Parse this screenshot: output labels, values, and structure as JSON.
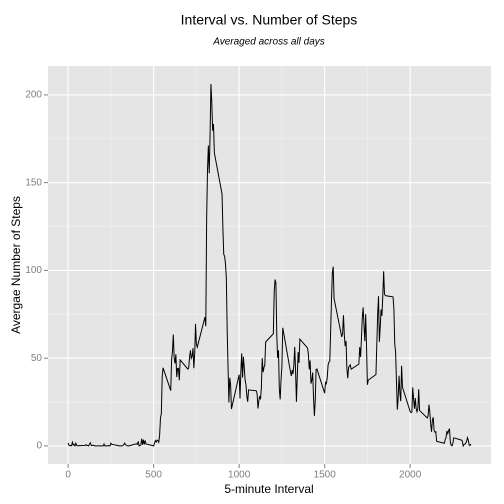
{
  "chart_data": {
    "type": "line",
    "title": "Interval vs. Number of Steps",
    "subtitle": "Averaged across all days",
    "xlabel": "5-minute Interval",
    "ylabel": "Avergae Number of Steps",
    "xlim": [
      -117.75,
      2472.75
    ],
    "ylim": [
      -10.31,
      216.48
    ],
    "xticks": [
      0,
      500,
      1000,
      1500,
      2000
    ],
    "yticks": [
      0,
      50,
      100,
      150,
      200
    ],
    "grid": true,
    "x": [
      0,
      5,
      10,
      15,
      20,
      25,
      30,
      35,
      40,
      45,
      50,
      55,
      100,
      105,
      110,
      115,
      120,
      125,
      130,
      135,
      140,
      145,
      150,
      155,
      200,
      205,
      210,
      215,
      220,
      225,
      230,
      235,
      240,
      245,
      250,
      255,
      300,
      305,
      310,
      315,
      320,
      325,
      330,
      335,
      340,
      345,
      350,
      355,
      400,
      405,
      410,
      415,
      420,
      425,
      430,
      435,
      440,
      445,
      450,
      455,
      500,
      505,
      510,
      515,
      520,
      525,
      530,
      535,
      540,
      545,
      550,
      555,
      600,
      605,
      610,
      615,
      620,
      625,
      630,
      635,
      640,
      645,
      650,
      655,
      700,
      705,
      710,
      715,
      720,
      725,
      730,
      735,
      740,
      745,
      750,
      755,
      800,
      805,
      810,
      815,
      820,
      825,
      830,
      835,
      840,
      845,
      850,
      855,
      900,
      905,
      910,
      915,
      920,
      925,
      930,
      935,
      940,
      945,
      950,
      955,
      1000,
      1005,
      1010,
      1015,
      1020,
      1025,
      1030,
      1035,
      1040,
      1045,
      1050,
      1055,
      1100,
      1105,
      1110,
      1115,
      1120,
      1125,
      1130,
      1135,
      1140,
      1145,
      1150,
      1155,
      1200,
      1205,
      1210,
      1215,
      1220,
      1225,
      1230,
      1235,
      1240,
      1245,
      1250,
      1255,
      1300,
      1305,
      1310,
      1315,
      1320,
      1325,
      1330,
      1335,
      1340,
      1345,
      1350,
      1355,
      1400,
      1405,
      1410,
      1415,
      1420,
      1425,
      1430,
      1435,
      1440,
      1445,
      1450,
      1455,
      1500,
      1505,
      1510,
      1515,
      1520,
      1525,
      1530,
      1535,
      1540,
      1545,
      1550,
      1555,
      1600,
      1605,
      1610,
      1615,
      1620,
      1625,
      1630,
      1635,
      1640,
      1645,
      1650,
      1655,
      1700,
      1705,
      1710,
      1715,
      1720,
      1725,
      1730,
      1735,
      1740,
      1745,
      1750,
      1755,
      1800,
      1805,
      1810,
      1815,
      1820,
      1825,
      1830,
      1835,
      1840,
      1845,
      1850,
      1855,
      1900,
      1905,
      1910,
      1915,
      1920,
      1925,
      1930,
      1935,
      1940,
      1945,
      1950,
      1955,
      2000,
      2005,
      2010,
      2015,
      2020,
      2025,
      2030,
      2035,
      2040,
      2045,
      2050,
      2055,
      2100,
      2105,
      2110,
      2115,
      2120,
      2125,
      2130,
      2135,
      2140,
      2145,
      2150,
      2155,
      2200,
      2205,
      2210,
      2215,
      2220,
      2225,
      2230,
      2235,
      2240,
      2245,
      2250,
      2255,
      2300,
      2305,
      2310,
      2315,
      2320,
      2325,
      2330,
      2335,
      2340,
      2345,
      2350,
      2355
    ],
    "series": [
      {
        "name": "steps",
        "color": "#000000",
        "values": [
          1.7,
          0.3,
          0.1,
          0.2,
          0.1,
          2.1,
          0.5,
          0.9,
          0,
          1.5,
          0.3,
          0.1,
          0.3,
          0.7,
          0.2,
          0.3,
          0,
          1.1,
          1.8,
          0.2,
          0.2,
          0.4,
          0.3,
          0,
          0,
          0,
          1.1,
          0,
          0,
          0.1,
          0,
          0.2,
          0,
          0,
          1.5,
          0.9,
          0,
          0,
          0,
          0,
          0.2,
          0.6,
          1.6,
          0.6,
          0.5,
          0.1,
          0,
          0,
          1.2,
          0.9,
          2.6,
          0,
          0.3,
          0.4,
          4.1,
          0.7,
          3.5,
          0.8,
          3.1,
          1.1,
          0,
          1.6,
          3,
          2.2,
          3.3,
          3,
          2.1,
          6.1,
          16,
          18.3,
          39.5,
          44.5,
          31.5,
          49.3,
          53.8,
          63.5,
          50,
          47,
          52.2,
          39.3,
          44.1,
          44.2,
          37.4,
          49,
          43.8,
          44.4,
          50.5,
          54.5,
          49.9,
          51,
          55.7,
          44.3,
          52.3,
          69.5,
          57.8,
          56.2,
          73.4,
          68.2,
          129.4,
          157.5,
          171.2,
          155.4,
          177.3,
          206.2,
          195.9,
          179.6,
          183.4,
          167,
          143.5,
          124,
          109.1,
          108.1,
          103.7,
          95.97,
          66.2,
          45.2,
          24.8,
          38.8,
          35,
          21,
          40.6,
          26.98,
          42.4,
          52.7,
          38.9,
          50.8,
          44.3,
          37.4,
          34.7,
          28.3,
          25.1,
          31.9,
          31.4,
          29.7,
          21.3,
          25.5,
          28.4,
          26.5,
          33.4,
          50,
          42,
          44.6,
          46,
          59.2,
          63.9,
          87.7,
          94.8,
          92.8,
          63.4,
          50.2,
          54.5,
          32.4,
          26.5,
          37.7,
          45.1,
          67.3,
          42.3,
          39.9,
          43.3,
          40.98,
          46.2,
          56.4,
          42.8,
          25.1,
          39.96,
          53.5,
          47.3,
          60.8,
          55.8,
          51.96,
          43.6,
          48.7,
          35.5,
          37.5,
          41.8,
          27.5,
          17.1,
          26.1,
          43.6,
          43.8,
          30,
          36.1,
          35.5,
          38.8,
          45.96,
          47.8,
          48.1,
          65.3,
          82.9,
          98.7,
          102.1,
          83.96,
          62.1,
          64.1,
          74.5,
          63.2,
          56.9,
          59.8,
          43.9,
          38.6,
          44.7,
          45.5,
          46.2,
          43.7,
          46.6,
          56.3,
          50.7,
          61.2,
          72.7,
          78.9,
          68.9,
          59.7,
          75.1,
          56.5,
          34.8,
          37.5,
          40.7,
          58,
          74.7,
          85.3,
          59.3,
          67.8,
          77.7,
          74.2,
          85.3,
          99.5,
          86.6,
          85.6,
          84.9,
          77.8,
          58,
          53.4,
          36.3,
          20.7,
          27.4,
          40,
          30.2,
          25.5,
          45.7,
          33.5,
          19.6,
          19,
          19.3,
          33.3,
          26.8,
          21.2,
          27.3,
          21.3,
          19.5,
          21.3,
          32.3,
          20.2,
          15.9,
          17.2,
          23.5,
          19.2,
          12.5,
          8,
          14.7,
          16.3,
          8.7,
          7.8,
          8.1,
          2.6,
          1.5,
          3.7,
          4.8,
          8.5,
          7.1,
          8.7,
          9.8,
          2.2,
          0.3,
          0.1,
          1.6,
          4.6,
          3.3,
          2.8,
          0,
          0.8,
          0.96,
          1.6,
          2.6,
          4.7,
          3.3,
          0.6,
          0.2,
          1.1
        ]
      }
    ]
  }
}
